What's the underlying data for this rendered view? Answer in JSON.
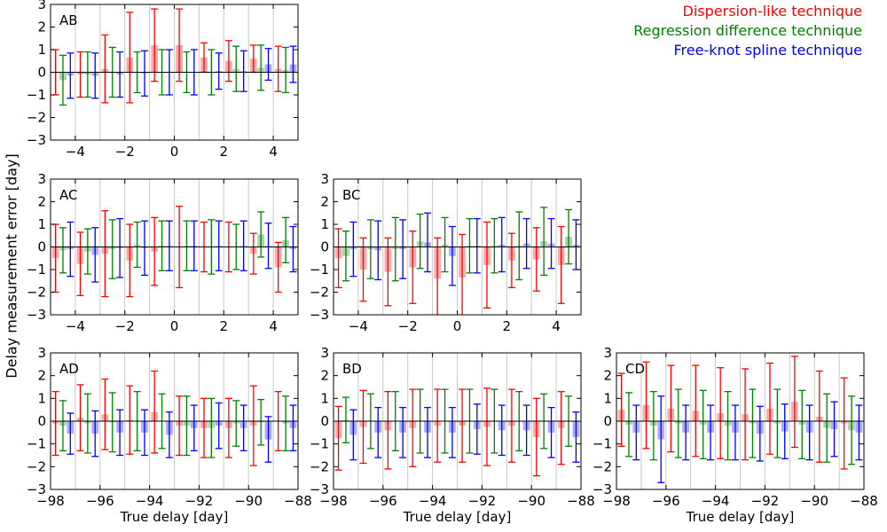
{
  "figure": {
    "ylabel": "Delay measurement error [day]",
    "xlabel": "True delay [day]"
  },
  "legend": {
    "items": [
      {
        "label": "Dispersion-like technique",
        "color": "#ff0000"
      },
      {
        "label": "Regression difference technique",
        "color": "#008000"
      },
      {
        "label": "Free-knot spline technique",
        "color": "#0000ff"
      }
    ]
  },
  "colors": {
    "dispersion": "#ff0000",
    "regression": "#008000",
    "spline": "#0000ff"
  },
  "chart_data": [
    {
      "type": "bar",
      "panel": "AB",
      "xlim": [
        -5,
        5
      ],
      "ylim": [
        -3,
        3
      ],
      "xticks": [
        -4,
        -2,
        0,
        2,
        4
      ],
      "yticks": [
        -3,
        -2,
        -1,
        0,
        1,
        2,
        3
      ],
      "show_xlabel": false,
      "x": [
        -4.5,
        -3.5,
        -2.5,
        -1.5,
        -0.5,
        0.5,
        1.5,
        2.5,
        3.5,
        4.5
      ],
      "series": [
        {
          "name": "Dispersion-like technique",
          "values": [
            0.0,
            -0.1,
            0.15,
            0.65,
            1.2,
            1.2,
            0.65,
            0.5,
            0.6,
            0.15
          ],
          "errors": [
            1.0,
            1.0,
            1.5,
            2.0,
            1.6,
            1.6,
            0.65,
            0.9,
            0.6,
            1.0
          ]
        },
        {
          "name": "Regression difference technique",
          "values": [
            -0.35,
            -0.1,
            0.0,
            0.0,
            0.0,
            0.0,
            0.0,
            0.15,
            0.2,
            0.1
          ],
          "errors": [
            1.1,
            1.0,
            1.1,
            0.9,
            1.0,
            0.9,
            1.0,
            1.0,
            1.0,
            1.0
          ]
        },
        {
          "name": "Free-knot spline technique",
          "values": [
            -0.15,
            -0.15,
            -0.1,
            -0.05,
            0.0,
            0.0,
            0.05,
            0.05,
            0.35,
            0.35
          ],
          "errors": [
            1.0,
            1.0,
            1.0,
            1.0,
            1.0,
            1.0,
            0.8,
            0.9,
            0.7,
            0.8
          ]
        }
      ]
    },
    {
      "type": "bar",
      "panel": "AC",
      "xlim": [
        -5,
        5
      ],
      "ylim": [
        -3,
        3
      ],
      "xticks": [
        -4,
        -2,
        0,
        2,
        4
      ],
      "yticks": [
        -3,
        -2,
        -1,
        0,
        1,
        2,
        3
      ],
      "show_xlabel": false,
      "x": [
        -4.5,
        -3.5,
        -2.5,
        -1.5,
        -0.5,
        0.5,
        1.5,
        2.5,
        3.5,
        4.5
      ],
      "series": [
        {
          "name": "Dispersion-like technique",
          "values": [
            -0.5,
            -0.75,
            -0.3,
            -0.6,
            -0.2,
            0.0,
            0.0,
            0.0,
            -0.3,
            -0.9
          ],
          "errors": [
            1.5,
            1.4,
            1.9,
            1.6,
            1.5,
            1.8,
            1.1,
            1.1,
            0.9,
            1.1
          ]
        },
        {
          "name": "Regression difference technique",
          "values": [
            -0.15,
            -0.2,
            -0.1,
            0.1,
            0.05,
            0.05,
            0.0,
            0.0,
            0.55,
            0.3
          ],
          "errors": [
            1.0,
            1.0,
            1.3,
            1.0,
            1.1,
            1.1,
            1.2,
            1.0,
            1.0,
            1.0
          ]
        },
        {
          "name": "Free-knot spline technique",
          "values": [
            -0.1,
            -0.35,
            -0.05,
            -0.05,
            0.05,
            0.05,
            0.05,
            0.05,
            0.05,
            -0.1
          ],
          "errors": [
            1.2,
            1.2,
            1.3,
            1.2,
            1.1,
            1.1,
            1.1,
            1.1,
            1.0,
            1.0
          ]
        }
      ]
    },
    {
      "type": "bar",
      "panel": "BC",
      "xlim": [
        -5,
        5
      ],
      "ylim": [
        -3,
        3
      ],
      "xticks": [
        -4,
        -2,
        0,
        2,
        4
      ],
      "yticks": [
        -3,
        -2,
        -1,
        0,
        1,
        2,
        3
      ],
      "show_xlabel": false,
      "x": [
        -4.5,
        -3.5,
        -2.5,
        -1.5,
        -0.5,
        0.5,
        1.5,
        2.5,
        3.5,
        4.5
      ],
      "series": [
        {
          "name": "Dispersion-like technique",
          "values": [
            -0.5,
            -1.0,
            -1.1,
            -0.9,
            -1.4,
            -1.35,
            -0.8,
            -0.6,
            -0.55,
            -0.8
          ],
          "errors": [
            1.3,
            1.4,
            1.5,
            1.6,
            1.8,
            1.9,
            1.9,
            1.2,
            1.4,
            1.7
          ]
        },
        {
          "name": "Regression difference technique",
          "values": [
            -0.4,
            -0.1,
            -0.1,
            0.25,
            0.1,
            0.05,
            0.05,
            0.05,
            0.25,
            0.45
          ],
          "errors": [
            1.1,
            1.3,
            1.4,
            1.2,
            1.2,
            1.2,
            1.2,
            1.5,
            1.5,
            1.2
          ]
        },
        {
          "name": "Free-knot spline technique",
          "values": [
            -0.1,
            -0.15,
            -0.1,
            0.2,
            -0.4,
            0.05,
            0.1,
            0.15,
            0.15,
            0.1
          ],
          "errors": [
            1.2,
            1.3,
            1.3,
            1.3,
            1.3,
            1.2,
            1.2,
            1.1,
            1.1,
            1.1
          ]
        }
      ]
    },
    {
      "type": "bar",
      "panel": "AD",
      "xlim": [
        -98,
        -88
      ],
      "ylim": [
        -3,
        3
      ],
      "xticks": [
        -98,
        -96,
        -94,
        -92,
        -90,
        -88
      ],
      "yticks": [
        -3,
        -2,
        -1,
        0,
        1,
        2,
        3
      ],
      "show_xlabel": true,
      "x": [
        -97.5,
        -96.5,
        -95.5,
        -94.5,
        -93.5,
        -92.5,
        -91.5,
        -90.5,
        -89.5,
        -88.5
      ],
      "series": [
        {
          "name": "Dispersion-like technique",
          "values": [
            -0.1,
            0.15,
            0.3,
            0.05,
            0.4,
            -0.2,
            -0.3,
            -0.3,
            -0.2,
            0.0
          ],
          "errors": [
            1.4,
            1.45,
            1.55,
            1.5,
            1.8,
            1.3,
            1.3,
            1.3,
            1.75,
            1.3
          ]
        },
        {
          "name": "Regression difference technique",
          "values": [
            -0.2,
            -0.1,
            -0.05,
            0.0,
            0.0,
            -0.2,
            -0.3,
            -0.1,
            -0.05,
            -0.1
          ],
          "errors": [
            1.1,
            1.3,
            1.3,
            1.3,
            1.2,
            1.3,
            1.3,
            1.0,
            1.0,
            1.2
          ]
        },
        {
          "name": "Free-knot spline technique",
          "values": [
            -0.55,
            -0.55,
            -0.5,
            -0.5,
            -0.6,
            -0.3,
            -0.2,
            -0.3,
            -0.8,
            -0.3
          ],
          "errors": [
            0.9,
            1.0,
            1.0,
            1.0,
            1.0,
            1.0,
            1.0,
            1.0,
            1.0,
            1.0
          ]
        }
      ]
    },
    {
      "type": "bar",
      "panel": "BD",
      "xlim": [
        -98,
        -88
      ],
      "ylim": [
        -3,
        3
      ],
      "xticks": [
        -98,
        -96,
        -94,
        -92,
        -90,
        -88
      ],
      "yticks": [
        -3,
        -2,
        -1,
        0,
        1,
        2,
        3
      ],
      "show_xlabel": true,
      "x": [
        -97.5,
        -96.5,
        -95.5,
        -94.5,
        -93.5,
        -92.5,
        -91.5,
        -90.5,
        -89.5,
        -88.5
      ],
      "series": [
        {
          "name": "Dispersion-like technique",
          "values": [
            -0.75,
            -0.25,
            -0.4,
            -0.3,
            -0.2,
            -0.2,
            -0.25,
            -0.2,
            -0.7,
            -0.3
          ],
          "errors": [
            1.4,
            1.6,
            1.7,
            1.7,
            1.6,
            1.6,
            1.7,
            1.6,
            1.7,
            1.6
          ]
        },
        {
          "name": "Regression difference technique",
          "values": [
            0.05,
            0.0,
            0.0,
            0.0,
            0.0,
            0.0,
            0.0,
            0.0,
            0.0,
            0.0
          ],
          "errors": [
            1.0,
            1.2,
            1.3,
            1.4,
            1.4,
            1.4,
            1.4,
            1.3,
            1.2,
            1.1
          ]
        },
        {
          "name": "Free-knot spline technique",
          "values": [
            -0.6,
            -0.5,
            -0.5,
            -0.5,
            -0.5,
            -0.35,
            -0.4,
            -0.4,
            -0.5,
            -0.7
          ],
          "errors": [
            1.1,
            1.1,
            1.1,
            1.1,
            1.1,
            1.1,
            1.1,
            1.1,
            1.1,
            1.1
          ]
        }
      ]
    },
    {
      "type": "bar",
      "panel": "CD",
      "xlim": [
        -98,
        -88
      ],
      "ylim": [
        -3,
        3
      ],
      "xticks": [
        -98,
        -96,
        -94,
        -92,
        -90,
        -88
      ],
      "yticks": [
        -3,
        -2,
        -1,
        0,
        1,
        2,
        3
      ],
      "show_xlabel": true,
      "x": [
        -97.5,
        -96.5,
        -95.5,
        -94.5,
        -93.5,
        -92.5,
        -91.5,
        -90.5,
        -89.5,
        -88.5
      ],
      "series": [
        {
          "name": "Dispersion-like technique",
          "values": [
            0.5,
            0.7,
            0.55,
            0.45,
            0.35,
            0.3,
            0.55,
            0.85,
            0.2,
            -0.1
          ],
          "errors": [
            1.6,
            1.9,
            1.9,
            2.0,
            2.0,
            2.0,
            2.0,
            2.0,
            2.0,
            2.0
          ]
        },
        {
          "name": "Regression difference technique",
          "values": [
            -0.15,
            -0.2,
            -0.1,
            -0.15,
            -0.2,
            -0.1,
            -0.1,
            -0.15,
            -0.3,
            -0.4
          ],
          "errors": [
            1.4,
            1.5,
            1.5,
            1.5,
            1.5,
            1.5,
            1.5,
            1.5,
            1.5,
            1.5
          ]
        },
        {
          "name": "Free-knot spline technique",
          "values": [
            -0.5,
            -0.8,
            -0.5,
            -0.5,
            -0.5,
            -0.55,
            -0.45,
            -0.5,
            -0.35,
            -0.5
          ],
          "errors": [
            1.2,
            1.9,
            1.2,
            1.2,
            1.2,
            1.2,
            1.2,
            1.2,
            1.2,
            1.2
          ]
        }
      ]
    }
  ]
}
